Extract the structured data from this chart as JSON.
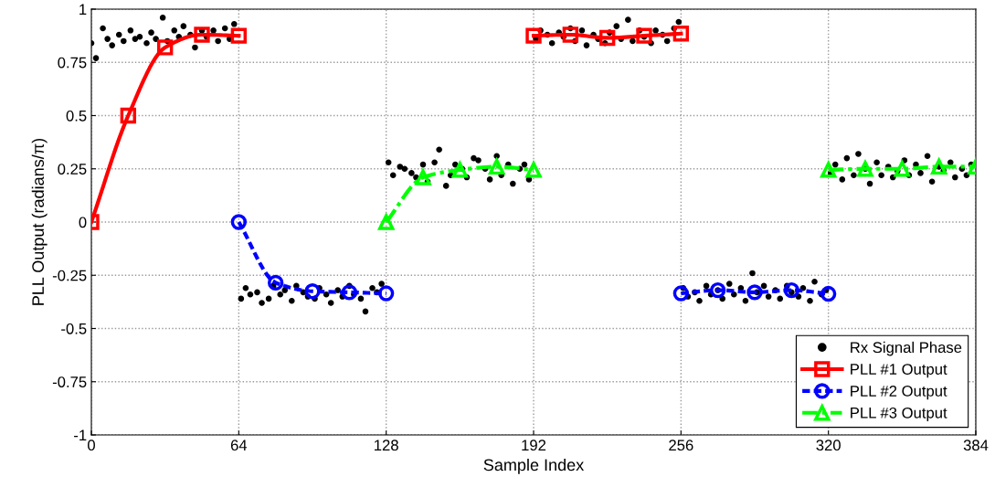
{
  "chart_data": {
    "type": "line",
    "xlabel": "Sample Index",
    "ylabel": "PLL Output (radians/π)",
    "xlim": [
      0,
      384
    ],
    "xticks": [
      0,
      64,
      128,
      192,
      256,
      320,
      384
    ],
    "ylim": [
      -1,
      1
    ],
    "yticks": [
      -1,
      -0.75,
      -0.5,
      -0.25,
      0,
      0.25,
      0.5,
      0.75,
      1
    ],
    "grid": true,
    "legend": "bottom right",
    "series": [
      {
        "name": "Rx Signal Phase",
        "type": "scatter",
        "color": "#000000",
        "marker": "circle",
        "x": [
          0,
          2,
          5,
          7,
          9,
          12,
          14,
          17,
          19,
          21,
          24,
          26,
          28,
          31,
          33,
          36,
          38,
          40,
          43,
          45,
          48,
          50,
          53,
          55,
          58,
          60,
          62,
          65,
          67,
          69,
          72,
          74,
          77,
          79,
          82,
          84,
          87,
          89,
          92,
          94,
          97,
          99,
          102,
          104,
          107,
          109,
          112,
          114,
          117,
          119,
          122,
          124,
          126,
          129,
          131,
          134,
          136,
          139,
          141,
          144,
          146,
          149,
          151,
          154,
          156,
          158,
          161,
          163,
          166,
          168,
          171,
          173,
          176,
          178,
          181,
          183,
          186,
          188,
          190,
          193,
          195,
          198,
          200,
          203,
          205,
          208,
          210,
          213,
          215,
          218,
          220,
          223,
          225,
          228,
          230,
          233,
          235,
          238,
          240,
          243,
          245,
          248,
          250,
          253,
          255,
          257,
          259,
          262,
          264,
          267,
          269,
          272,
          274,
          277,
          279,
          282,
          284,
          287,
          289,
          292,
          294,
          297,
          299,
          302,
          304,
          307,
          309,
          312,
          314,
          317,
          319,
          321,
          323,
          326,
          328,
          331,
          333,
          336,
          338,
          341,
          343,
          346,
          348,
          350,
          353,
          355,
          358,
          360,
          363,
          365,
          368,
          370,
          373,
          375,
          378,
          380,
          382
        ],
        "values": [
          0.84,
          0.77,
          0.91,
          0.86,
          0.83,
          0.88,
          0.85,
          0.9,
          0.86,
          0.87,
          0.84,
          0.89,
          0.86,
          0.96,
          0.85,
          0.9,
          0.87,
          0.92,
          0.88,
          0.82,
          0.9,
          0.87,
          0.9,
          0.85,
          0.91,
          0.86,
          0.93,
          -0.36,
          -0.31,
          -0.34,
          -0.33,
          -0.38,
          -0.36,
          -0.3,
          -0.34,
          -0.32,
          -0.37,
          -0.3,
          -0.33,
          -0.35,
          -0.36,
          -0.31,
          -0.34,
          -0.38,
          -0.32,
          -0.35,
          -0.3,
          -0.34,
          -0.36,
          -0.42,
          -0.31,
          -0.33,
          -0.29,
          0.28,
          0.22,
          0.26,
          0.25,
          0.23,
          0.21,
          0.27,
          0.19,
          0.28,
          0.34,
          0.17,
          0.22,
          0.27,
          0.25,
          0.21,
          0.3,
          0.29,
          0.25,
          0.2,
          0.31,
          0.22,
          0.27,
          0.18,
          0.25,
          0.27,
          0.2,
          0.86,
          0.9,
          0.88,
          0.84,
          0.89,
          0.87,
          0.91,
          0.85,
          0.9,
          0.83,
          0.88,
          0.86,
          0.84,
          0.89,
          0.92,
          0.86,
          0.95,
          0.85,
          0.9,
          0.87,
          0.84,
          0.9,
          0.88,
          0.85,
          0.91,
          0.94,
          -0.31,
          -0.35,
          -0.33,
          -0.37,
          -0.3,
          -0.34,
          -0.32,
          -0.36,
          -0.29,
          -0.34,
          -0.31,
          -0.37,
          -0.24,
          -0.33,
          -0.3,
          -0.35,
          -0.32,
          -0.36,
          -0.3,
          -0.33,
          -0.35,
          -0.31,
          -0.37,
          -0.28,
          -0.34,
          -0.32,
          0.23,
          0.27,
          0.2,
          0.3,
          0.22,
          0.32,
          0.25,
          0.18,
          0.28,
          0.22,
          0.26,
          0.21,
          0.24,
          0.29,
          0.22,
          0.27,
          0.23,
          0.31,
          0.19,
          0.26,
          0.24,
          0.28,
          0.21,
          0.25,
          0.22,
          0.27
        ]
      },
      {
        "name": "PLL #1 Output",
        "color": "#ff0000",
        "marker": "square",
        "line_style": "solid",
        "x": [
          0,
          16,
          32,
          48,
          64,
          128,
          192,
          208,
          224,
          240,
          256
        ],
        "values": [
          0,
          0.5,
          0.82,
          0.88,
          0.875,
          null,
          0.875,
          0.88,
          0.865,
          0.875,
          0.885
        ]
      },
      {
        "name": "PLL #2 Output",
        "color": "#0000ff",
        "marker": "circle",
        "line_style": "dashed",
        "x": [
          64,
          80,
          96,
          112,
          128,
          192,
          256,
          272,
          288,
          304,
          320
        ],
        "values": [
          0,
          -0.285,
          -0.325,
          -0.33,
          -0.335,
          null,
          -0.335,
          -0.32,
          -0.33,
          -0.32,
          -0.337
        ]
      },
      {
        "name": "PLL #3 Output",
        "color": "#00ff00",
        "marker": "triangle",
        "line_style": "dashdot",
        "x": [
          128,
          144,
          160,
          176,
          192,
          256,
          320,
          336,
          352,
          368,
          384
        ],
        "values": [
          0,
          0.21,
          0.245,
          0.26,
          0.245,
          null,
          0.245,
          0.25,
          0.25,
          0.26,
          0.26
        ]
      }
    ]
  }
}
